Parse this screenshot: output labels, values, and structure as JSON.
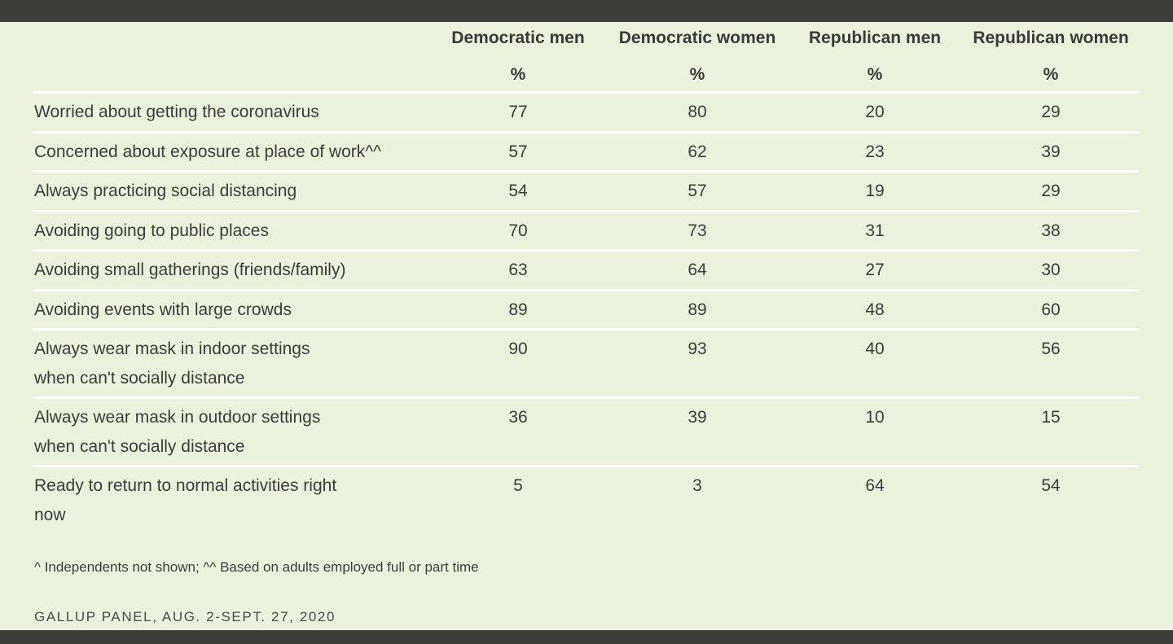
{
  "columns": [
    "Democratic men",
    "Democratic women",
    "Republican men",
    "Republican women"
  ],
  "unit_label": "%",
  "rows": [
    {
      "label": "Worried about getting the coronavirus",
      "values": [
        77,
        80,
        20,
        29
      ]
    },
    {
      "label": "Concerned about exposure at place of work^^",
      "values": [
        57,
        62,
        23,
        39
      ]
    },
    {
      "label": "Always practicing social distancing",
      "values": [
        54,
        57,
        19,
        29
      ]
    },
    {
      "label": "Avoiding going to public places",
      "values": [
        70,
        73,
        31,
        38
      ]
    },
    {
      "label": "Avoiding small gatherings (friends/family)",
      "values": [
        63,
        64,
        27,
        30
      ]
    },
    {
      "label": "Avoiding events with large crowds",
      "values": [
        89,
        89,
        48,
        60
      ]
    },
    {
      "label": "Always wear mask in indoor settings when can't socially distance",
      "values": [
        90,
        93,
        40,
        56
      ]
    },
    {
      "label": "Always wear mask in outdoor settings when can't socially distance",
      "values": [
        36,
        39,
        10,
        15
      ]
    },
    {
      "label": "Ready to return to normal activities right now",
      "values": [
        5,
        3,
        64,
        54
      ]
    }
  ],
  "footnote": "^ Independents not shown; ^^ Based on adults employed full or part time",
  "source": "GALLUP PANEL, AUG. 2-SEPT. 27, 2020",
  "chart_data": {
    "type": "table",
    "columns": [
      "Democratic men",
      "Democratic women",
      "Republican men",
      "Republican women"
    ],
    "unit": "%",
    "rows": [
      {
        "label": "Worried about getting the coronavirus",
        "values": [
          77,
          80,
          20,
          29
        ]
      },
      {
        "label": "Concerned about exposure at place of work^^",
        "values": [
          57,
          62,
          23,
          39
        ]
      },
      {
        "label": "Always practicing social distancing",
        "values": [
          54,
          57,
          19,
          29
        ]
      },
      {
        "label": "Avoiding going to public places",
        "values": [
          70,
          73,
          31,
          38
        ]
      },
      {
        "label": "Avoiding small gatherings (friends/family)",
        "values": [
          63,
          64,
          27,
          30
        ]
      },
      {
        "label": "Avoiding events with large crowds",
        "values": [
          89,
          89,
          48,
          60
        ]
      },
      {
        "label": "Always wear mask in indoor settings when can't socially distance",
        "values": [
          90,
          93,
          40,
          56
        ]
      },
      {
        "label": "Always wear mask in outdoor settings when can't socially distance",
        "values": [
          36,
          39,
          10,
          15
        ]
      },
      {
        "label": "Ready to return to normal activities right now",
        "values": [
          5,
          3,
          64,
          54
        ]
      }
    ]
  }
}
